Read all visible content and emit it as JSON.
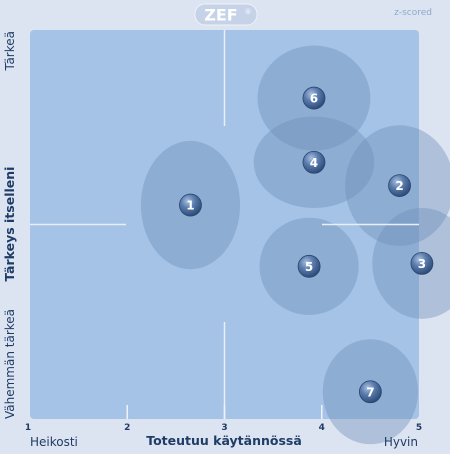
{
  "logo": {
    "text": "ZEF",
    "mark": "®"
  },
  "corner_note": "z-scored",
  "chart_data": {
    "type": "scatter",
    "xlabel": "Toteutuu käytännössä",
    "ylabel": "Tärkeys itselleni",
    "x_low_label": "Heikosti",
    "x_high_label": "Hyvin",
    "y_high_label": "Tärkeä",
    "y_low_label": "Vähemmän tärkeä",
    "xlim": [
      1,
      5
    ],
    "ylim": [
      1,
      5
    ],
    "xticks": [
      "1",
      "2",
      "3",
      "4",
      "5"
    ],
    "points": [
      {
        "label": "1",
        "x": 2.65,
        "y": 3.2,
        "rx": 0.51,
        "ry": 0.66
      },
      {
        "label": "2",
        "x": 4.8,
        "y": 3.4,
        "rx": 0.56,
        "ry": 0.62
      },
      {
        "label": "3",
        "x": 5.03,
        "y": 2.6,
        "rx": 0.51,
        "ry": 0.57
      },
      {
        "label": "4",
        "x": 3.92,
        "y": 3.64,
        "rx": 0.62,
        "ry": 0.47
      },
      {
        "label": "5",
        "x": 3.87,
        "y": 2.57,
        "rx": 0.51,
        "ry": 0.5
      },
      {
        "label": "6",
        "x": 3.92,
        "y": 4.3,
        "rx": 0.58,
        "ry": 0.54
      },
      {
        "label": "7",
        "x": 4.5,
        "y": 1.28,
        "rx": 0.49,
        "ry": 0.54
      }
    ],
    "colors": {
      "background": "#dde4f1",
      "plot_area": "#a5c3e6",
      "bubble": "#6d8fba",
      "marker": "#3d5f8e",
      "axis_text": "#1f3c66",
      "logo_bg": "#c5d2e8"
    }
  }
}
